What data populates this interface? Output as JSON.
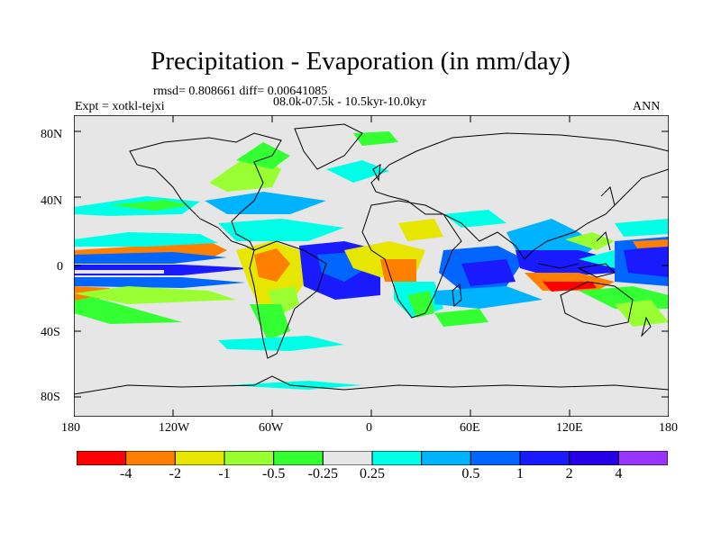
{
  "title": "Precipitation - Evaporation (in mm/day)",
  "stats": "rmsd= 0.808661 diff= 0.00641085",
  "period": "08.0k-07.5k - 10.5kyr-10.0kyr",
  "experiment": "Expt = xotkl-tejxi",
  "season": "ANN",
  "lat_ticks": [
    "80N",
    "40N",
    "0",
    "40S",
    "80S"
  ],
  "lon_ticks": [
    "180",
    "120W",
    "60W",
    "0",
    "60E",
    "120E",
    "180"
  ],
  "colorbar": {
    "colors": [
      "#ff0000",
      "#ff8000",
      "#e6e600",
      "#99ff33",
      "#33ff33",
      "#e6e6e6",
      "#00ffe6",
      "#00b3ff",
      "#0066ff",
      "#1a1aff",
      "#2600e6",
      "#9933ff"
    ],
    "labels": [
      "-4",
      "-2",
      "-1",
      "-0.5",
      "-0.25",
      "0.25",
      "0.5",
      "1",
      "2",
      "4"
    ]
  }
}
